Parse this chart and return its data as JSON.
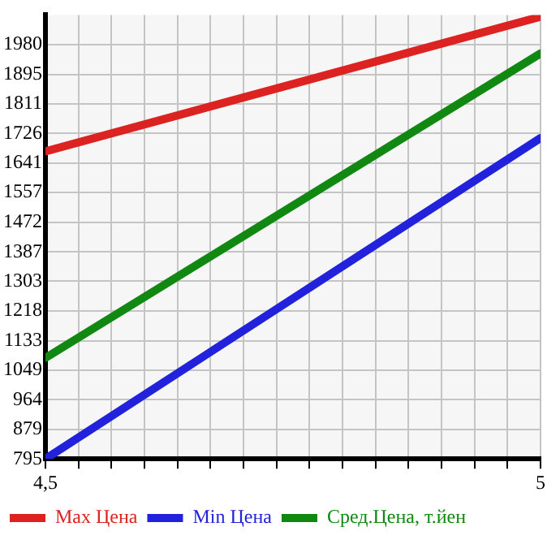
{
  "chart_data": {
    "type": "line",
    "x": [
      4.5,
      5
    ],
    "series": [
      {
        "name": "Max Цена",
        "color": "#dd2222",
        "values": [
          1675,
          2060
        ]
      },
      {
        "name": "Min Цена",
        "color": "#2222dd",
        "values": [
          795,
          1713
        ]
      },
      {
        "name": "Сред.Цена, т.йен",
        "color": "#118811",
        "values": [
          1084,
          1955
        ]
      }
    ],
    "xlim": [
      4.5,
      5
    ],
    "xticks": [
      {
        "value": 4.5,
        "label": "4,5"
      },
      {
        "value": 4.5333,
        "label": null
      },
      {
        "value": 4.5667,
        "label": null
      },
      {
        "value": 4.6,
        "label": null
      },
      {
        "value": 4.6333,
        "label": null
      },
      {
        "value": 4.6667,
        "label": null
      },
      {
        "value": 4.7,
        "label": null
      },
      {
        "value": 4.7333,
        "label": null
      },
      {
        "value": 4.7667,
        "label": null
      },
      {
        "value": 4.8,
        "label": null
      },
      {
        "value": 4.8333,
        "label": null
      },
      {
        "value": 4.8667,
        "label": null
      },
      {
        "value": 4.9,
        "label": null
      },
      {
        "value": 4.9333,
        "label": null
      },
      {
        "value": 4.9667,
        "label": null
      },
      {
        "value": 5,
        "label": "5"
      }
    ],
    "ylim": [
      795,
      2065
    ],
    "yticks": [
      795,
      879,
      964,
      1049,
      1133,
      1218,
      1303,
      1387,
      1472,
      1557,
      1641,
      1726,
      1811,
      1895,
      1980
    ],
    "grid": true,
    "legend": "bottom",
    "marker": "none",
    "line_style": "solid"
  }
}
